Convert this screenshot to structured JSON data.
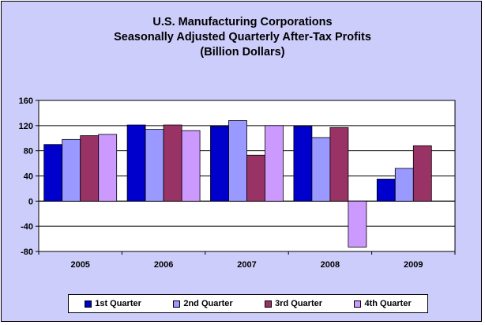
{
  "title": {
    "line1": "U.S. Manufacturing Corporations",
    "line2": "Seasonally Adjusted Quarterly After-Tax Profits",
    "line3": "(Billion Dollars)"
  },
  "colors": {
    "background": "#cdcdfb",
    "plot_area": "#ffffff",
    "series": [
      "#0000cc",
      "#9999ff",
      "#993366",
      "#cc99ff"
    ]
  },
  "chart_data": {
    "type": "bar",
    "categories": [
      "2005",
      "2006",
      "2007",
      "2008",
      "2009"
    ],
    "series": [
      {
        "name": "1st Quarter",
        "values": [
          90,
          121,
          119,
          119,
          35
        ]
      },
      {
        "name": "2nd Quarter",
        "values": [
          98,
          114,
          128,
          101,
          52
        ]
      },
      {
        "name": "3rd Quarter",
        "values": [
          104,
          121,
          73,
          117,
          88
        ]
      },
      {
        "name": "4th Quarter",
        "values": [
          106,
          112,
          120,
          -73,
          null
        ]
      }
    ],
    "ylim": [
      -80,
      160
    ],
    "yticks": [
      "160",
      "120",
      "80",
      "40",
      "0",
      "-40",
      "-80"
    ],
    "grid": true,
    "legend_position": "bottom",
    "title": "U.S. Manufacturing Corporations Seasonally Adjusted Quarterly After-Tax Profits (Billion Dollars)"
  }
}
